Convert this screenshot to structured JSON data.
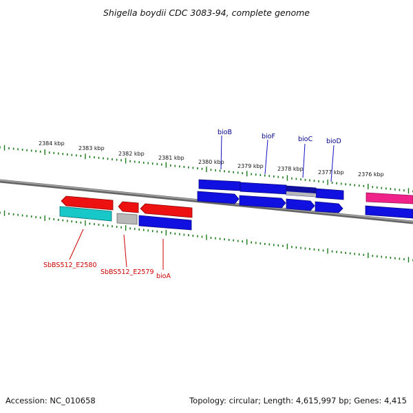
{
  "title": "Shigella boydii CDC 3083-94, complete genome",
  "footer": {
    "accession": "Accession: NC_010658",
    "summary": "Topology: circular; Length: 4,615,997 bp; Genes: 4,415"
  },
  "scale_labels": [
    "2384 kbp",
    "2383 kbp",
    "2382 kbp",
    "2381 kbp",
    "2380 kbp",
    "2379 kbp",
    "2378 kbp",
    "2377 kbp",
    "2376 kbp"
  ],
  "top_gene_labels": [
    "bioB",
    "bioF",
    "bioC",
    "bioD"
  ],
  "bottom_gene_labels": [
    "SbBS512_E2580",
    "SbBS512_E2579",
    "bioA"
  ],
  "colors": {
    "blue": "#1010e0",
    "red": "#ee1111",
    "cyan": "#18c8c8",
    "gray": "#b8b8b8",
    "pink": "#ee2288",
    "tick_green": "#1a7a1a",
    "label_blue": "#00008b",
    "label_red": "#cc0000"
  }
}
